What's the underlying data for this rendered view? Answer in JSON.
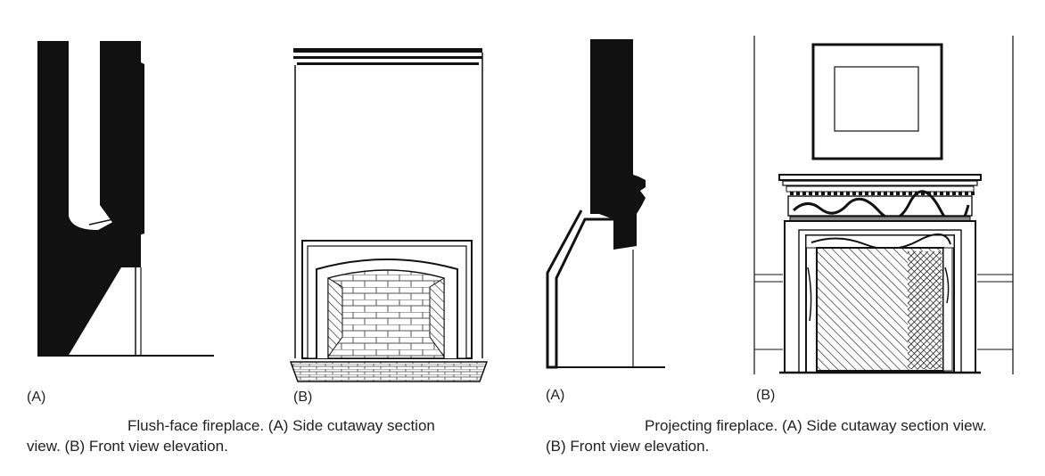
{
  "figure_left": {
    "label_a": "(A)",
    "label_b": "(B)",
    "caption_line1": "Flush-face fireplace. (A) Side cutaway section",
    "caption_line2": "view. (B) Front view elevation."
  },
  "figure_right": {
    "label_a": "(A)",
    "label_b": "(B)",
    "caption_line1": "Projecting fireplace. (A) Side cutaway section view.",
    "caption_line2": "(B) Front view elevation."
  },
  "colors": {
    "ink": "#111111",
    "paper": "#ffffff",
    "brick": "#666666"
  }
}
